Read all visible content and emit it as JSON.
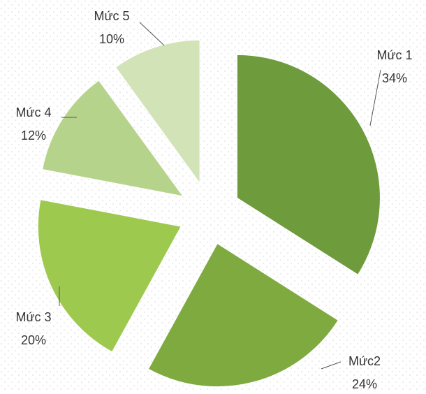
{
  "chart_data": {
    "type": "pie",
    "categories": [
      "Mức 1",
      "Mức2",
      "Mức 3",
      "Mức 4",
      "Mức 5"
    ],
    "values": [
      34,
      24,
      20,
      12,
      10
    ],
    "value_labels": [
      "34%",
      "24%",
      "20%",
      "12%",
      "10%"
    ],
    "colors": [
      "#6e9b3b",
      "#7eaa40",
      "#9ec94f",
      "#b6d38c",
      "#d2e3b8"
    ]
  }
}
